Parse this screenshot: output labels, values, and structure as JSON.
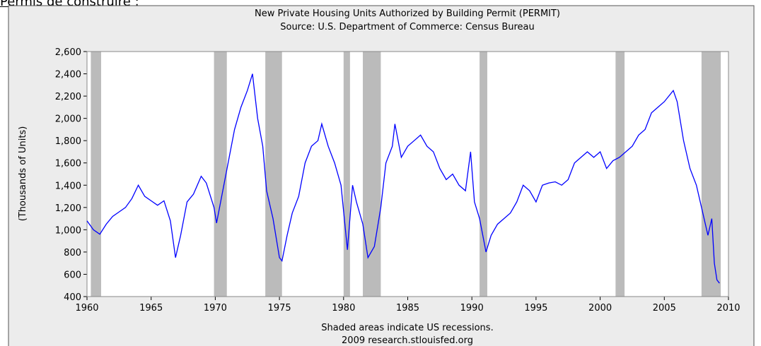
{
  "heading": "Permis de construire :",
  "chart_data": {
    "type": "line",
    "title": "New Private Housing Units Authorized by Building Permit (PERMIT)",
    "subtitle": "Source: U.S. Department of Commerce: Census Bureau",
    "ylabel": "(Thousands of Units)",
    "footer": "Shaded areas indicate US recessions.",
    "footer2": "2009 research.stlouisfed.org",
    "xlim": [
      1960,
      2010
    ],
    "xticks": [
      1960,
      1965,
      1970,
      1975,
      1980,
      1985,
      1990,
      1995,
      2000,
      2005,
      2010
    ],
    "ylim": [
      400,
      2600
    ],
    "yticks": [
      {
        "value": 400,
        "label": "400"
      },
      {
        "value": 600,
        "label": "600"
      },
      {
        "value": 800,
        "label": "800"
      },
      {
        "value": 1000,
        "label": "1,000"
      },
      {
        "value": 1200,
        "label": "1,200"
      },
      {
        "value": 1400,
        "label": "1,400"
      },
      {
        "value": 1600,
        "label": "1,600"
      },
      {
        "value": 1800,
        "label": "1,800"
      },
      {
        "value": 2000,
        "label": "2,000"
      },
      {
        "value": 2200,
        "label": "2,200"
      },
      {
        "value": 2400,
        "label": "2,400"
      },
      {
        "value": 2600,
        "label": "2,600"
      }
    ],
    "recessions": [
      [
        1960.3,
        1961.1
      ],
      [
        1969.9,
        1970.9
      ],
      [
        1973.9,
        1975.2
      ],
      [
        1980.0,
        1980.5
      ],
      [
        1981.5,
        1982.9
      ],
      [
        1990.6,
        1991.2
      ],
      [
        2001.2,
        2001.9
      ],
      [
        2007.9,
        2009.4
      ]
    ],
    "recession_color": "#bbbbbb",
    "series": [
      {
        "name": "PERMIT",
        "color": "#0000ff",
        "x": [
          1960.0,
          1960.5,
          1961.0,
          1961.5,
          1962,
          1962.5,
          1963,
          1963.5,
          1964,
          1964.5,
          1965,
          1965.5,
          1966,
          1966.5,
          1966.9,
          1967.3,
          1967.8,
          1968.3,
          1968.9,
          1969.3,
          1969.9,
          1970.1,
          1970.5,
          1971,
          1971.5,
          1972,
          1972.5,
          1972.9,
          1973.3,
          1973.7,
          1974,
          1974.5,
          1975,
          1975.2,
          1975.6,
          1976,
          1976.5,
          1977,
          1977.5,
          1978,
          1978.3,
          1978.8,
          1979.3,
          1979.8,
          1980.3,
          1980.7,
          1981,
          1981.5,
          1981.9,
          1982.4,
          1982.9,
          1983.3,
          1983.8,
          1984,
          1984.5,
          1985,
          1985.5,
          1986,
          1986.5,
          1987,
          1987.5,
          1988,
          1988.5,
          1989,
          1989.5,
          1989.9,
          1990.2,
          1990.6,
          1991.1,
          1991.5,
          1992,
          1992.5,
          1993,
          1993.5,
          1994,
          1994.5,
          1995,
          1995.5,
          1996,
          1996.5,
          1997,
          1997.5,
          1998,
          1998.5,
          1999,
          1999.5,
          2000,
          2000.5,
          2001,
          2001.5,
          2002,
          2002.5,
          2003,
          2003.5,
          2004,
          2004.5,
          2005,
          2005.7,
          2006,
          2006.5,
          2007,
          2007.5,
          2008,
          2008.4,
          2008.7,
          2008.9,
          2009.1,
          2009.3
        ],
        "values": [
          1080,
          1000,
          960,
          1050,
          1120,
          1160,
          1200,
          1280,
          1400,
          1300,
          1260,
          1220,
          1260,
          1080,
          750,
          950,
          1250,
          1320,
          1480,
          1420,
          1200,
          1060,
          1300,
          1600,
          1900,
          2100,
          2250,
          2400,
          2000,
          1750,
          1350,
          1100,
          750,
          720,
          950,
          1150,
          1300,
          1600,
          1750,
          1800,
          1950,
          1750,
          1600,
          1400,
          820,
          1400,
          1250,
          1050,
          750,
          850,
          1200,
          1600,
          1750,
          1950,
          1650,
          1750,
          1800,
          1850,
          1750,
          1700,
          1550,
          1450,
          1500,
          1400,
          1350,
          1700,
          1250,
          1100,
          800,
          950,
          1050,
          1100,
          1150,
          1250,
          1400,
          1350,
          1250,
          1400,
          1420,
          1430,
          1400,
          1450,
          1600,
          1650,
          1700,
          1650,
          1700,
          1550,
          1620,
          1650,
          1700,
          1750,
          1850,
          1900,
          2050,
          2100,
          2150,
          2250,
          2150,
          1800,
          1550,
          1400,
          1150,
          950,
          1100,
          700,
          550,
          520
        ]
      }
    ]
  }
}
